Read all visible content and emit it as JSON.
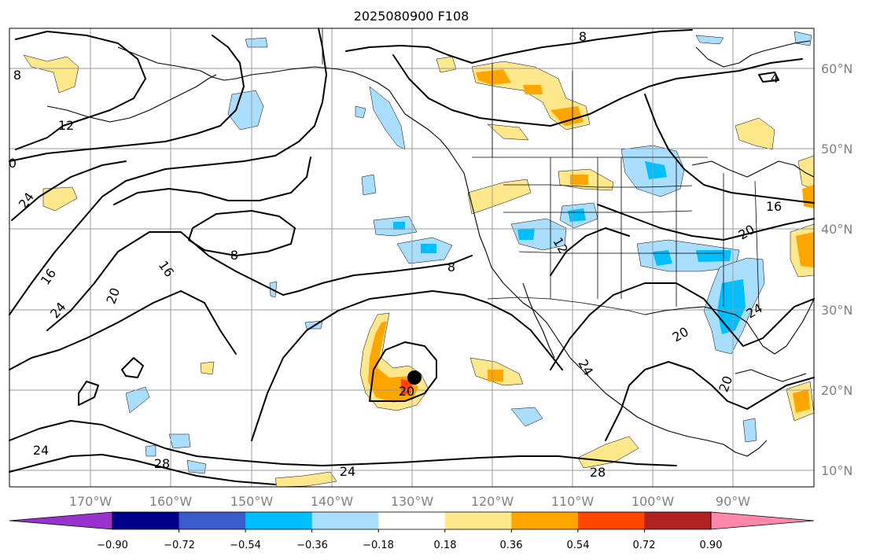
{
  "title": "2025080900 F108",
  "longitude_labels": [
    "170°W",
    "160°W",
    "150°W",
    "140°W",
    "130°W",
    "120°W",
    "110°W",
    "100°W",
    "90°W"
  ],
  "latitude_labels": [
    "60°N",
    "50°N",
    "40°N",
    "30°N",
    "20°N",
    "10°N"
  ],
  "colorbar": {
    "colors": [
      "#9932cc",
      "#00008b",
      "#3a5bcc",
      "#00bfff",
      "#aadeff",
      "#ffffff",
      "#ffe88c",
      "#ffa500",
      "#ff4500",
      "#b22222",
      "#ff88aa"
    ],
    "tick_labels": [
      "−0.90",
      "−0.72",
      "−0.54",
      "−0.36",
      "−0.18",
      "0.18",
      "0.36",
      "0.54",
      "0.72",
      "0.90"
    ]
  },
  "contour_labels": [
    "8",
    "12",
    "0",
    "24",
    "16",
    "24",
    "20",
    "16",
    "8",
    "8",
    "12",
    "20",
    "24",
    "28",
    "24",
    "28",
    "24",
    "20",
    "24",
    "20",
    "20",
    "16",
    "4",
    "8"
  ],
  "marker": {
    "type": "storm-center-dot",
    "color": "#000000"
  },
  "colors": {
    "grid": "#9a9a9a",
    "label_gray": "#808080"
  }
}
